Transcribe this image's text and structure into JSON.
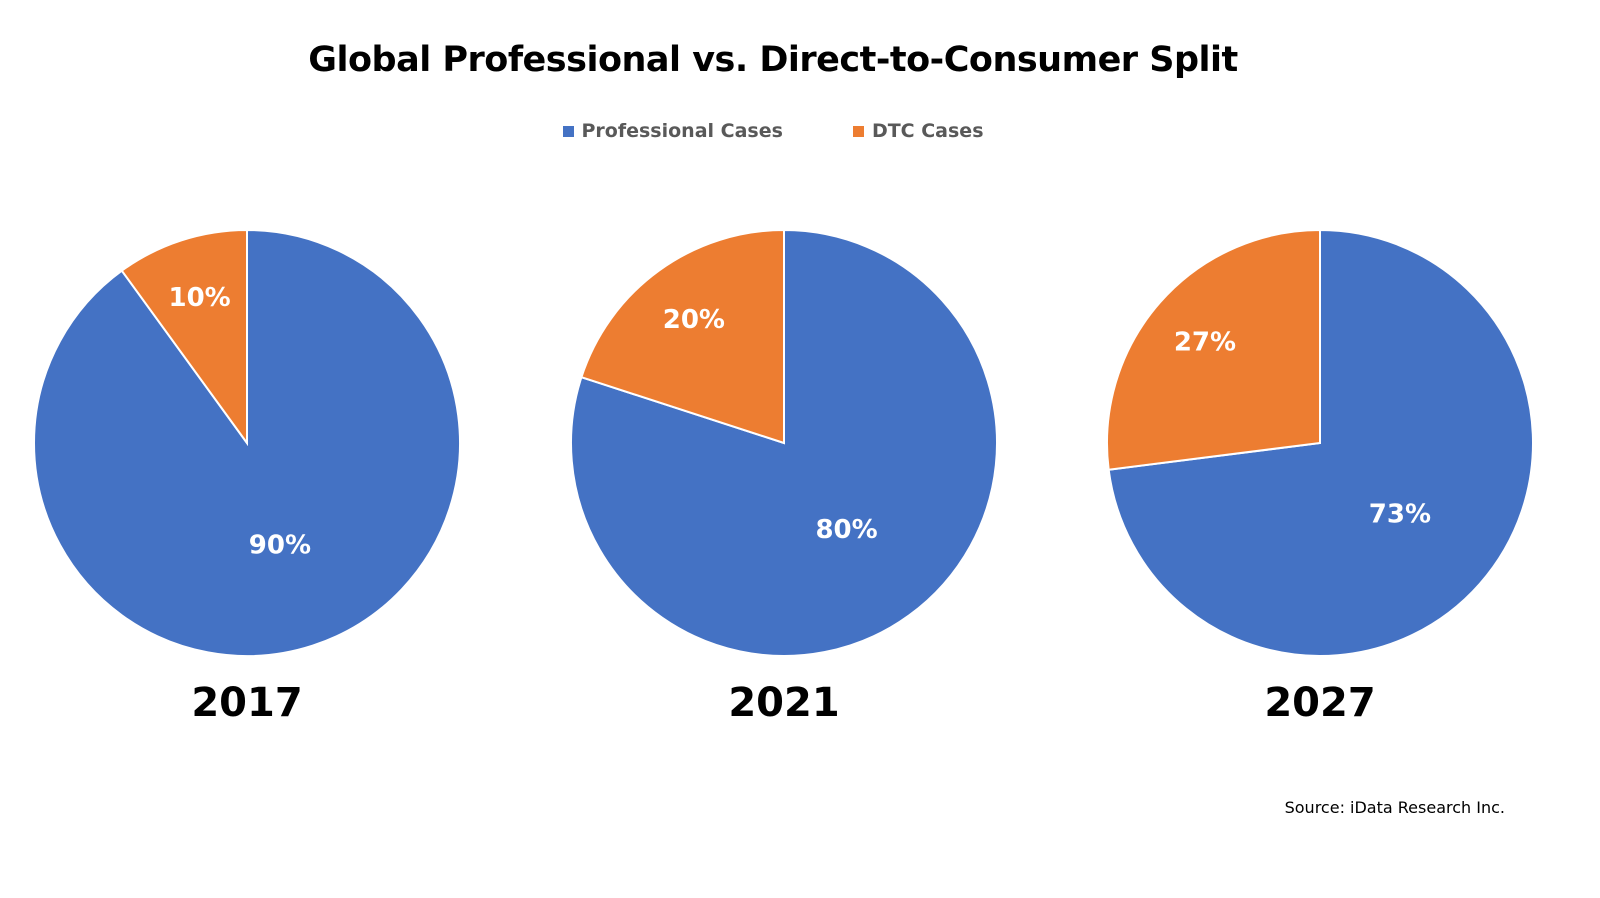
{
  "chart_data": {
    "type": "pie",
    "title": "Global Professional vs. Direct-to-Consumer Split",
    "legend": [
      {
        "name": "Professional Cases",
        "color": "#4472C4"
      },
      {
        "name": "DTC Cases",
        "color": "#ED7D31"
      }
    ],
    "legend_position": "top",
    "pies": [
      {
        "label": "2017",
        "slices": [
          {
            "name": "Professional Cases",
            "value": 90,
            "text": "90%"
          },
          {
            "name": "DTC Cases",
            "value": 10,
            "text": "10%"
          }
        ]
      },
      {
        "label": "2021",
        "slices": [
          {
            "name": "Professional Cases",
            "value": 80,
            "text": "80%"
          },
          {
            "name": "DTC Cases",
            "value": 20,
            "text": "20%"
          }
        ]
      },
      {
        "label": "2027",
        "slices": [
          {
            "name": "Professional Cases",
            "value": 73,
            "text": "73%"
          },
          {
            "name": "DTC Cases",
            "value": 27,
            "text": "27%"
          }
        ]
      }
    ],
    "source": "Source: iData Research Inc."
  }
}
